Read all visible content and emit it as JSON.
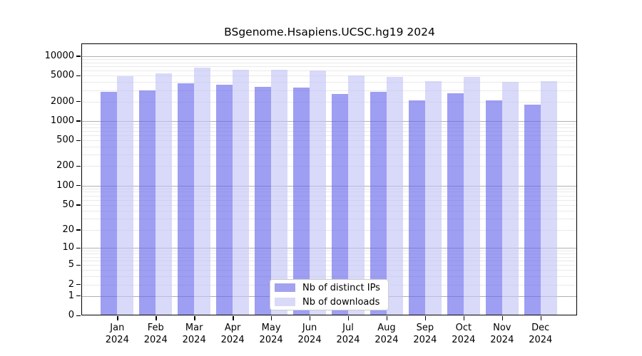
{
  "chart_data": {
    "type": "bar",
    "title": "BSgenome.Hsapiens.UCSC.hg19 2024",
    "categories": [
      "Jan 2024",
      "Feb 2024",
      "Mar 2024",
      "Apr 2024",
      "May 2024",
      "Jun 2024",
      "Jul 2024",
      "Aug 2024",
      "Sep 2024",
      "Oct 2024",
      "Nov 2024",
      "Dec 2024"
    ],
    "series": [
      {
        "name": "Nb of distinct IPs",
        "color": "#a2a2ef",
        "bar_fill": "rgba(99,99,235,0.62)",
        "values": [
          2800,
          2960,
          3790,
          3640,
          3360,
          3260,
          2600,
          2840,
          2080,
          2690,
          2080,
          1780
        ]
      },
      {
        "name": "Nb of downloads",
        "color": "#d9d9f9",
        "bar_fill": "rgba(193,193,247,0.62)",
        "values": [
          4920,
          5490,
          6620,
          6230,
          6140,
          5990,
          5050,
          4760,
          4090,
          4800,
          4020,
          4150
        ]
      }
    ],
    "yscale": "log1p",
    "yticks": [
      0,
      1,
      2,
      5,
      10,
      20,
      50,
      100,
      200,
      500,
      1000,
      2000,
      5000,
      10000
    ],
    "ylim": [
      0,
      15800
    ],
    "xlabel": "",
    "ylabel": "",
    "grid": "horizontal, log decades major + 2-9 minors",
    "grid_major_color": "#b0b0b0",
    "grid_minor_color": "#e9e9e9",
    "legend_position": "inside bottom-center"
  }
}
